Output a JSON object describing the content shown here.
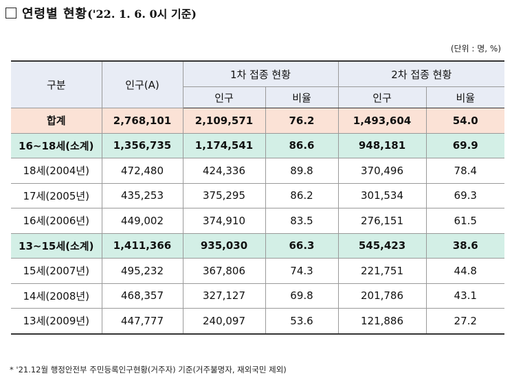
{
  "title": {
    "main": "연령별 현황",
    "sub": "('22. 1. 6. 0시 기준)"
  },
  "unit": "(단위 : 명, %)",
  "table": {
    "headers": {
      "category": "구분",
      "population": "인구(A)",
      "dose1": "1차 접종 현황",
      "dose2": "2차 접종 현황",
      "sub_population": "인구",
      "sub_rate": "비율"
    },
    "rows": [
      {
        "type": "total",
        "category": "합계",
        "population": "2,768,101",
        "dose1_count": "2,109,571",
        "dose1_rate": "76.2",
        "dose2_count": "1,493,604",
        "dose2_rate": "54.0"
      },
      {
        "type": "subtotal",
        "category": "16~18세(소계)",
        "population": "1,356,735",
        "dose1_count": "1,174,541",
        "dose1_rate": "86.6",
        "dose2_count": "948,181",
        "dose2_rate": "69.9"
      },
      {
        "type": "row",
        "category": "18세(2004년)",
        "population": "472,480",
        "dose1_count": "424,336",
        "dose1_rate": "89.8",
        "dose2_count": "370,496",
        "dose2_rate": "78.4"
      },
      {
        "type": "row",
        "category": "17세(2005년)",
        "population": "435,253",
        "dose1_count": "375,295",
        "dose1_rate": "86.2",
        "dose2_count": "301,534",
        "dose2_rate": "69.3"
      },
      {
        "type": "row",
        "category": "16세(2006년)",
        "population": "449,002",
        "dose1_count": "374,910",
        "dose1_rate": "83.5",
        "dose2_count": "276,151",
        "dose2_rate": "61.5"
      },
      {
        "type": "subtotal",
        "category": "13~15세(소계)",
        "population": "1,411,366",
        "dose1_count": "935,030",
        "dose1_rate": "66.3",
        "dose2_count": "545,423",
        "dose2_rate": "38.6"
      },
      {
        "type": "row",
        "category": "15세(2007년)",
        "population": "495,232",
        "dose1_count": "367,806",
        "dose1_rate": "74.3",
        "dose2_count": "221,751",
        "dose2_rate": "44.8"
      },
      {
        "type": "row",
        "category": "14세(2008년)",
        "population": "468,357",
        "dose1_count": "327,127",
        "dose1_rate": "69.8",
        "dose2_count": "201,786",
        "dose2_rate": "43.1"
      },
      {
        "type": "row",
        "category": "13세(2009년)",
        "population": "447,777",
        "dose1_count": "240,097",
        "dose1_rate": "53.6",
        "dose2_count": "121,886",
        "dose2_rate": "27.2"
      }
    ]
  },
  "footnote": "* '21.12월 행정안전부 주민등록인구현황(거주자) 기준(거주불명자, 재외국민 제외)",
  "colors": {
    "header_bg": "#e8ecf5",
    "total_bg": "#fbe2d6",
    "subtotal_bg": "#d3efe6"
  }
}
